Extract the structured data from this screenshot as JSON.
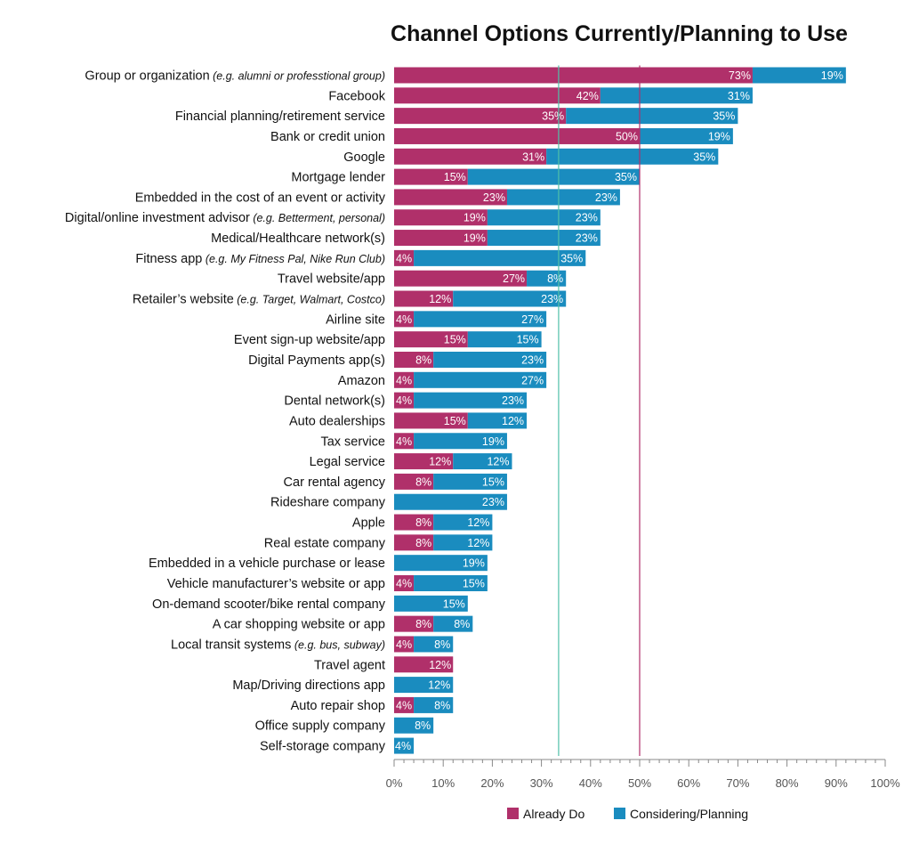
{
  "chart_data": {
    "type": "bar",
    "orientation": "horizontal",
    "stacked": true,
    "title": "Channel Options Currently/Planning to Use",
    "xlim": [
      0,
      100
    ],
    "x_ticks": [
      "0%",
      "10%",
      "20%",
      "30%",
      "40%",
      "50%",
      "60%",
      "70%",
      "80%",
      "90%",
      "100%"
    ],
    "reference_lines": [
      {
        "value": 33.5,
        "color": "#4fbfa8"
      },
      {
        "value": 50,
        "color": "#b0306a"
      }
    ],
    "legend": {
      "placement": "bottom",
      "entries": [
        {
          "name": "Already Do",
          "color": "#b0306a"
        },
        {
          "name": "Considering/Planning",
          "color": "#1a8cbf"
        }
      ]
    },
    "categories": [
      {
        "label": "Group or organization",
        "note": "(e.g. alumni or professtional group)"
      },
      {
        "label": "Facebook",
        "note": ""
      },
      {
        "label": "Financial planning/retirement service",
        "note": ""
      },
      {
        "label": "Bank or credit union",
        "note": ""
      },
      {
        "label": "Google",
        "note": ""
      },
      {
        "label": "Mortgage lender",
        "note": ""
      },
      {
        "label": "Embedded in the cost of an event or activity",
        "note": ""
      },
      {
        "label": "Digital/online investment advisor",
        "note": "(e.g. Betterment, personal)"
      },
      {
        "label": "Medical/Healthcare network(s)",
        "note": ""
      },
      {
        "label": "Fitness app",
        "note": "(e.g. My Fitness Pal, Nike Run Club)"
      },
      {
        "label": "Travel website/app",
        "note": ""
      },
      {
        "label": "Retailer’s website",
        "note": "(e.g. Target, Walmart, Costco)"
      },
      {
        "label": "Airline site",
        "note": ""
      },
      {
        "label": "Event sign-up website/app",
        "note": ""
      },
      {
        "label": "Digital Payments app(s)",
        "note": ""
      },
      {
        "label": "Amazon",
        "note": ""
      },
      {
        "label": "Dental network(s)",
        "note": ""
      },
      {
        "label": "Auto dealerships",
        "note": ""
      },
      {
        "label": "Tax service",
        "note": ""
      },
      {
        "label": "Legal service",
        "note": ""
      },
      {
        "label": "Car rental agency",
        "note": ""
      },
      {
        "label": "Rideshare company",
        "note": ""
      },
      {
        "label": "Apple",
        "note": ""
      },
      {
        "label": "Real estate company",
        "note": ""
      },
      {
        "label": "Embedded in a vehicle purchase or lease",
        "note": ""
      },
      {
        "label": "Vehicle manufacturer’s website or app",
        "note": ""
      },
      {
        "label": "On-demand scooter/bike rental company",
        "note": ""
      },
      {
        "label": "A car shopping website or app",
        "note": ""
      },
      {
        "label": "Local transit systems",
        "note": "(e.g. bus, subway)"
      },
      {
        "label": "Travel agent",
        "note": ""
      },
      {
        "label": "Map/Driving directions app",
        "note": ""
      },
      {
        "label": "Auto repair shop",
        "note": ""
      },
      {
        "label": "Office supply company",
        "note": ""
      },
      {
        "label": "Self-storage company",
        "note": ""
      }
    ],
    "series": [
      {
        "name": "Already Do",
        "color": "#b0306a",
        "values": [
          73,
          42,
          35,
          50,
          31,
          15,
          23,
          19,
          19,
          4,
          27,
          12,
          4,
          15,
          8,
          4,
          4,
          15,
          4,
          12,
          8,
          0,
          8,
          8,
          0,
          4,
          0,
          8,
          4,
          12,
          0,
          4,
          0,
          0
        ],
        "labels": [
          "73%",
          "42%",
          "35%",
          "50%",
          "31%",
          "15%",
          "23%",
          "19%",
          "19%",
          "4%",
          "27%",
          "12%",
          "4%",
          "15%",
          "8%",
          "4%",
          "4%",
          "15%",
          "4%",
          "12%",
          "8%",
          "",
          "8%",
          "8%",
          "",
          "4%",
          "",
          "8%",
          "4%",
          "12%",
          "",
          "4%",
          "",
          ""
        ]
      },
      {
        "name": "Considering/Planning",
        "color": "#1a8cbf",
        "values": [
          19,
          31,
          35,
          19,
          35,
          35,
          23,
          23,
          23,
          35,
          8,
          23,
          27,
          15,
          23,
          27,
          23,
          12,
          19,
          12,
          15,
          23,
          12,
          12,
          19,
          15,
          15,
          8,
          8,
          0,
          12,
          8,
          8,
          4
        ],
        "labels": [
          "19%",
          "31%",
          "35%",
          "19%",
          "35%",
          "35%",
          "23%",
          "23%",
          "23%",
          "35%",
          "8%",
          "23%",
          "27%",
          "15%",
          "23%",
          "27%",
          "23%",
          "12%",
          "19%",
          "12%",
          "15%",
          "23%",
          "12%",
          "12%",
          "19%",
          "15%",
          "15%",
          "8%",
          "8%",
          "",
          "12%",
          "8%",
          "8%",
          "4%"
        ]
      }
    ]
  }
}
